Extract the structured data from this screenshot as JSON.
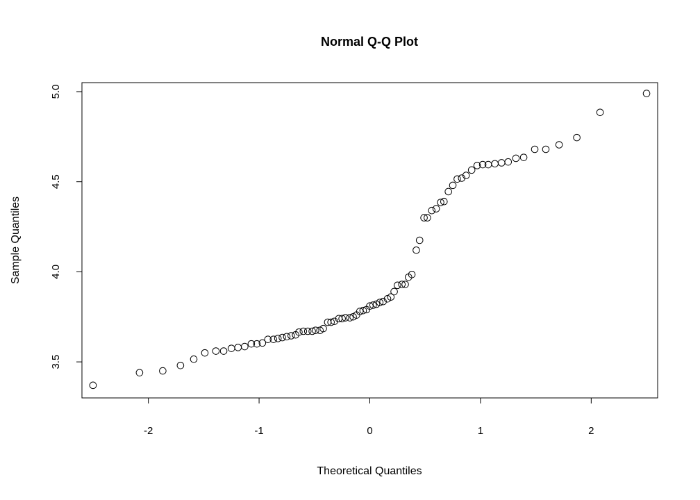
{
  "chart_data": {
    "type": "scatter",
    "title": "Normal Q-Q Plot",
    "xlabel": "Theoretical Quantiles",
    "ylabel": "Sample Quantiles",
    "xlim": [
      -2.6,
      2.6
    ],
    "ylim": [
      3.3,
      5.05
    ],
    "x_ticks": [
      -2,
      -1,
      0,
      1,
      2
    ],
    "x_tick_labels": [
      "-2",
      "-1",
      "0",
      "1",
      "2"
    ],
    "y_ticks": [
      3.5,
      4.0,
      4.5,
      5.0
    ],
    "y_tick_labels": [
      "3.5",
      "4.0",
      "4.5",
      "5.0"
    ],
    "grid": false,
    "legend": "none",
    "marker": "open-circle",
    "point_color": "#000000",
    "points": [
      [
        -2.5,
        3.37
      ],
      [
        -2.08,
        3.44
      ],
      [
        -1.87,
        3.45
      ],
      [
        -1.71,
        3.48
      ],
      [
        -1.59,
        3.515
      ],
      [
        -1.49,
        3.55
      ],
      [
        -1.39,
        3.56
      ],
      [
        -1.32,
        3.56
      ],
      [
        -1.25,
        3.575
      ],
      [
        -1.19,
        3.58
      ],
      [
        -1.13,
        3.585
      ],
      [
        -1.07,
        3.6
      ],
      [
        -1.02,
        3.6
      ],
      [
        -0.97,
        3.605
      ],
      [
        -0.92,
        3.625
      ],
      [
        -0.87,
        3.625
      ],
      [
        -0.83,
        3.63
      ],
      [
        -0.79,
        3.635
      ],
      [
        -0.75,
        3.64
      ],
      [
        -0.71,
        3.645
      ],
      [
        -0.67,
        3.65
      ],
      [
        -0.64,
        3.665
      ],
      [
        -0.6,
        3.67
      ],
      [
        -0.56,
        3.67
      ],
      [
        -0.52,
        3.67
      ],
      [
        -0.49,
        3.675
      ],
      [
        -0.45,
        3.675
      ],
      [
        -0.42,
        3.685
      ],
      [
        -0.38,
        3.72
      ],
      [
        -0.35,
        3.72
      ],
      [
        -0.32,
        3.725
      ],
      [
        -0.28,
        3.74
      ],
      [
        -0.25,
        3.74
      ],
      [
        -0.22,
        3.745
      ],
      [
        -0.18,
        3.745
      ],
      [
        -0.15,
        3.75
      ],
      [
        -0.12,
        3.76
      ],
      [
        -0.09,
        3.78
      ],
      [
        -0.06,
        3.785
      ],
      [
        -0.03,
        3.79
      ],
      [
        0.0,
        3.81
      ],
      [
        0.03,
        3.815
      ],
      [
        0.06,
        3.82
      ],
      [
        0.09,
        3.83
      ],
      [
        0.12,
        3.835
      ],
      [
        0.16,
        3.85
      ],
      [
        0.19,
        3.86
      ],
      [
        0.22,
        3.89
      ],
      [
        0.25,
        3.925
      ],
      [
        0.29,
        3.93
      ],
      [
        0.32,
        3.93
      ],
      [
        0.35,
        3.97
      ],
      [
        0.38,
        3.985
      ],
      [
        0.42,
        4.12
      ],
      [
        0.45,
        4.175
      ],
      [
        0.49,
        4.3
      ],
      [
        0.52,
        4.3
      ],
      [
        0.56,
        4.34
      ],
      [
        0.6,
        4.35
      ],
      [
        0.64,
        4.385
      ],
      [
        0.67,
        4.39
      ],
      [
        0.71,
        4.445
      ],
      [
        0.75,
        4.48
      ],
      [
        0.79,
        4.515
      ],
      [
        0.83,
        4.52
      ],
      [
        0.87,
        4.535
      ],
      [
        0.92,
        4.565
      ],
      [
        0.97,
        4.59
      ],
      [
        1.02,
        4.595
      ],
      [
        1.07,
        4.595
      ],
      [
        1.13,
        4.6
      ],
      [
        1.19,
        4.605
      ],
      [
        1.25,
        4.61
      ],
      [
        1.32,
        4.63
      ],
      [
        1.39,
        4.635
      ],
      [
        1.49,
        4.68
      ],
      [
        1.59,
        4.68
      ],
      [
        1.71,
        4.705
      ],
      [
        1.87,
        4.745
      ],
      [
        2.08,
        4.885
      ],
      [
        2.5,
        4.99
      ]
    ]
  }
}
